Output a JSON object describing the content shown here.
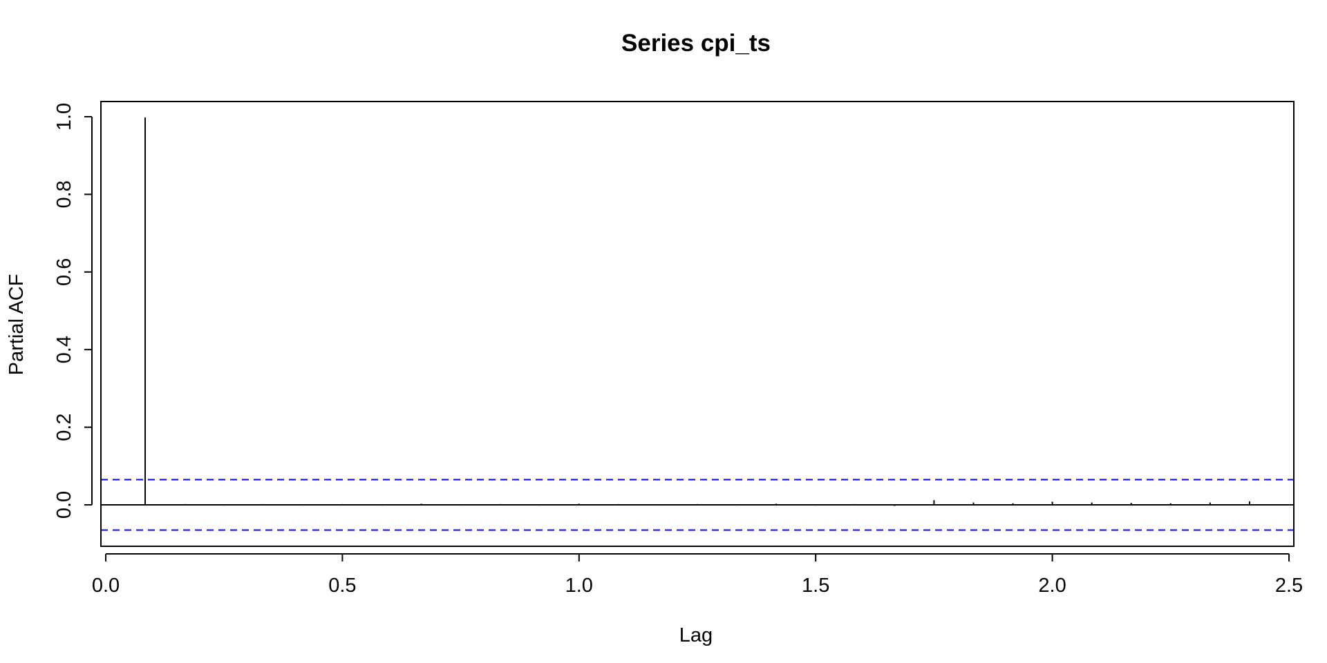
{
  "chart_data": {
    "type": "bar",
    "title": "Series  cpi_ts",
    "xlabel": "Lag",
    "ylabel": "Partial ACF",
    "xlim": [
      0,
      2.5
    ],
    "ylim": [
      -0.1,
      1.0
    ],
    "x_ticks": [
      0.0,
      0.5,
      1.0,
      1.5,
      2.0,
      2.5
    ],
    "x_tick_labels": [
      "0.0",
      "0.5",
      "1.0",
      "1.5",
      "2.0",
      "2.5"
    ],
    "y_ticks": [
      0.0,
      0.2,
      0.4,
      0.6,
      0.8,
      1.0
    ],
    "y_tick_labels": [
      "0.0",
      "0.2",
      "0.4",
      "0.6",
      "0.8",
      "1.0"
    ],
    "grid": false,
    "zero_line": true,
    "confidence_bound": 0.065,
    "confidence_color": "#0000ff",
    "series": [
      {
        "x": [
          0.0833,
          0.1667,
          0.25,
          0.3333,
          0.4167,
          0.5,
          0.5833,
          0.6667,
          0.75,
          0.8333,
          0.9167,
          1.0,
          1.0833,
          1.1667,
          1.25,
          1.3333,
          1.4167,
          1.5,
          1.5833,
          1.6667,
          1.75,
          1.8333,
          1.9167,
          2.0,
          2.0833,
          2.1667,
          2.25,
          2.3333,
          2.4167
        ],
        "values": [
          0.998,
          0.002,
          -0.002,
          0.002,
          -0.002,
          0.002,
          -0.002,
          0.003,
          -0.002,
          0.002,
          -0.002,
          0.003,
          0.002,
          -0.002,
          0.002,
          -0.002,
          0.003,
          -0.002,
          0.002,
          -0.003,
          0.012,
          0.006,
          0.004,
          0.008,
          0.006,
          0.005,
          0.004,
          0.006,
          0.009
        ]
      }
    ]
  },
  "colors": {
    "bars": "#000000",
    "axes": "#000000",
    "confidence_band": "#0000ff",
    "background": "#ffffff"
  }
}
